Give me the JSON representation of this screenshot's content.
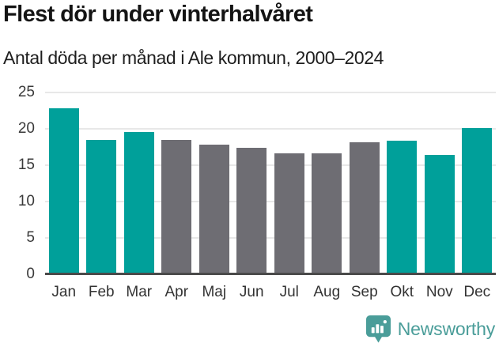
{
  "header": {
    "title": "Flest dör under vinterhalvåret",
    "subtitle": "Antal döda per månad i Ale kommun, 2000–2024"
  },
  "chart_data": {
    "type": "bar",
    "title": "Flest dör under vinterhalvåret",
    "subtitle": "Antal döda per månad i Ale kommun, 2000–2024",
    "categories": [
      "Jan",
      "Feb",
      "Mar",
      "Apr",
      "Maj",
      "Jun",
      "Jul",
      "Aug",
      "Sep",
      "Okt",
      "Nov",
      "Dec"
    ],
    "values": [
      22.8,
      18.5,
      19.6,
      18.5,
      17.8,
      17.4,
      16.6,
      16.6,
      18.1,
      18.4,
      16.4,
      20.1
    ],
    "xlabel": "",
    "ylabel": "",
    "ylim": [
      0,
      25
    ],
    "yticks": [
      0,
      5,
      10,
      15,
      20,
      25
    ],
    "grid": "horizontal",
    "legend": "none",
    "bar_color_keys": [
      "winter",
      "winter",
      "winter",
      "summer",
      "summer",
      "summer",
      "summer",
      "summer",
      "summer",
      "winter",
      "winter",
      "winter"
    ],
    "colors": {
      "winter": "#00a09a",
      "summer": "#6e6d73",
      "gridline": "#e8e8e8",
      "axis_line": "#4a4a4a",
      "tick_text": "#3a3a3a"
    }
  },
  "footer": {
    "brand": "Newsworthy",
    "logo_icon": "bar-chart-speech-bubble-icon",
    "brand_color": "#4a9d99"
  }
}
